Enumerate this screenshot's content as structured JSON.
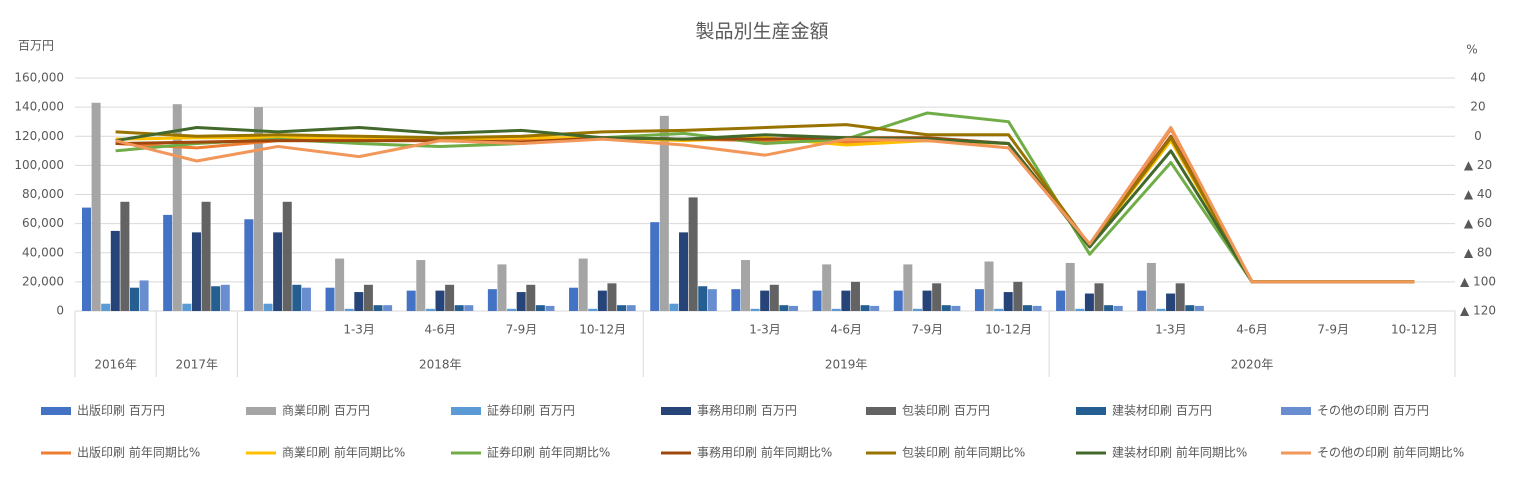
{
  "chart_data": {
    "type": "bar-line",
    "title": "製品別生産金額",
    "ylabel": "百万円",
    "y2label": "%",
    "categories": [
      null,
      null,
      null,
      "1-3月",
      "4-6月",
      "7-9月",
      "10-12月",
      null,
      "1-3月",
      "4-6月",
      "7-9月",
      "10-12月",
      null,
      "1-3月",
      "4-6月",
      "7-9月",
      "10-12月"
    ],
    "category_groups": [
      "2016年",
      "2017年",
      "2018年",
      null,
      null,
      null,
      null,
      "2019年",
      null,
      null,
      null,
      null,
      "2020年",
      null,
      null,
      null,
      null
    ],
    "ylim": [
      0,
      160000
    ],
    "yticks": [
      0,
      {
        "value": 20000,
        "label": "20,000"
      },
      {
        "value": 40000,
        "label": "40,000"
      },
      {
        "value": 60000,
        "label": "60,000"
      },
      {
        "value": 80000,
        "label": "80,000"
      },
      {
        "value": 100000,
        "label": "100,000"
      },
      {
        "value": 120000,
        "label": "120,000"
      },
      {
        "value": 140000,
        "label": "140,000"
      },
      {
        "value": 160000,
        "label": "160,000"
      }
    ],
    "y2lim": [
      -120,
      40
    ],
    "y2ticks": [
      {
        "value": -120,
        "label": "▲ 120"
      },
      {
        "value": -100,
        "label": "▲ 100"
      },
      {
        "value": -80,
        "label": "▲ 80"
      },
      {
        "value": -60,
        "label": "▲ 60"
      },
      {
        "value": -40,
        "label": "▲ 40"
      },
      {
        "value": -20,
        "label": "▲ 20"
      },
      0,
      20,
      40
    ],
    "grid": true,
    "legend": "bottom",
    "series": [
      {
        "name": "出版印刷 百万円",
        "type": "bar",
        "color": "#4472c4",
        "values": [
          71000,
          66000,
          63000,
          16000,
          14000,
          15000,
          16000,
          61000,
          15000,
          14000,
          14000,
          15000,
          14000,
          14000,
          null,
          null,
          null
        ]
      },
      {
        "name": "商業印刷 百万円",
        "type": "bar",
        "color": "#a5a5a5",
        "values": [
          143000,
          142000,
          140000,
          36000,
          35000,
          32000,
          36000,
          134000,
          35000,
          32000,
          32000,
          34000,
          33000,
          33000,
          null,
          null,
          null
        ]
      },
      {
        "name": "証券印刷 百万円",
        "type": "bar",
        "color": "#5b9bd5",
        "values": [
          5000,
          5000,
          5000,
          1500,
          1500,
          1500,
          1500,
          5000,
          1500,
          1500,
          1500,
          1500,
          1500,
          1500,
          null,
          null,
          null
        ]
      },
      {
        "name": "事務用印刷 百万円",
        "type": "bar",
        "color": "#264478",
        "values": [
          55000,
          54000,
          54000,
          13000,
          14000,
          13000,
          14000,
          54000,
          14000,
          14000,
          14000,
          13000,
          12000,
          12000,
          null,
          null,
          null
        ]
      },
      {
        "name": "包装印刷 百万円",
        "type": "bar",
        "color": "#636363",
        "values": [
          75000,
          75000,
          75000,
          18000,
          18000,
          18000,
          19000,
          78000,
          18000,
          20000,
          19000,
          20000,
          19000,
          19000,
          null,
          null,
          null
        ]
      },
      {
        "name": "建装材印刷 百万円",
        "type": "bar",
        "color": "#255e91",
        "values": [
          16000,
          17000,
          18000,
          4000,
          4000,
          4000,
          4000,
          17000,
          4000,
          4000,
          4000,
          4000,
          4000,
          4000,
          null,
          null,
          null
        ]
      },
      {
        "name": "その他の印刷 百万円",
        "type": "bar",
        "color": "#698ed0",
        "values": [
          21000,
          18000,
          16000,
          4000,
          4000,
          3500,
          4000,
          15000,
          3500,
          3500,
          3500,
          3500,
          3500,
          3500,
          null,
          null,
          null
        ]
      },
      {
        "name": "出版印刷 前年同期比%",
        "type": "line",
        "axis": "y2",
        "color": "#ed7d31",
        "values": [
          -5,
          -8,
          -3,
          -3,
          -3,
          -2,
          -1,
          -2,
          -3,
          -4,
          -3,
          -5,
          -76,
          5,
          -100,
          -100,
          -100
        ]
      },
      {
        "name": "商業印刷 前年同期比%",
        "type": "line",
        "axis": "y2",
        "color": "#ffc000",
        "values": [
          -2,
          -1,
          -1,
          -2,
          -2,
          -1,
          -1,
          -3,
          -1,
          -6,
          -3,
          -5,
          -75,
          -3,
          -100,
          -100,
          -100
        ]
      },
      {
        "name": "証券印刷 前年同期比%",
        "type": "line",
        "axis": "y2",
        "color": "#70ad47",
        "values": [
          -10,
          -5,
          -2,
          -5,
          -7,
          -5,
          -1,
          2,
          -5,
          -2,
          16,
          10,
          -81,
          -18,
          -100,
          -100,
          -100
        ]
      },
      {
        "name": "事務用印刷 前年同期比%",
        "type": "line",
        "axis": "y2",
        "color": "#9e480e",
        "values": [
          -5,
          -4,
          -3,
          -3,
          -3,
          -4,
          -1,
          -2,
          -2,
          -1,
          -1,
          -5,
          -75,
          0,
          -100,
          -100,
          -100
        ]
      },
      {
        "name": "包装印刷 前年同期比%",
        "type": "line",
        "axis": "y2",
        "color": "#997300",
        "values": [
          3,
          0,
          1,
          0,
          -1,
          0,
          3,
          4,
          6,
          8,
          1,
          1,
          -75,
          -1,
          -100,
          -100,
          -100
        ]
      },
      {
        "name": "建装材印刷 前年同期比%",
        "type": "line",
        "axis": "y2",
        "color": "#43682b",
        "values": [
          -3,
          6,
          3,
          6,
          2,
          4,
          -1,
          -2,
          1,
          -1,
          -2,
          -5,
          -76,
          -10,
          -100,
          -100,
          -100
        ]
      },
      {
        "name": "その他の印刷 前年同期比%",
        "type": "line",
        "axis": "y2",
        "color": "#f1975a",
        "values": [
          -3,
          -17,
          -7,
          -14,
          -3,
          -5,
          -2,
          -6,
          -13,
          -2,
          -3,
          -8,
          -74,
          6,
          -100,
          -100,
          -100
        ]
      }
    ]
  }
}
